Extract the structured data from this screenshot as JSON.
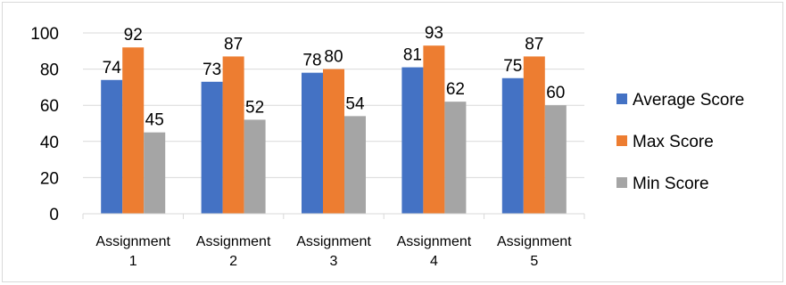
{
  "chart_data": {
    "type": "bar",
    "title": "",
    "xlabel": "",
    "ylabel": "",
    "categories": [
      [
        "Assignment",
        "1"
      ],
      [
        "Assignment",
        "2"
      ],
      [
        "Assignment",
        "3"
      ],
      [
        "Assignment",
        "4"
      ],
      [
        "Assignment",
        "5"
      ]
    ],
    "series": [
      {
        "name": "Average Score",
        "color": "#4472c4",
        "values": [
          74,
          73,
          78,
          81,
          75
        ]
      },
      {
        "name": "Max Score",
        "color": "#ed7d31",
        "values": [
          92,
          87,
          80,
          93,
          87
        ]
      },
      {
        "name": "Min Score",
        "color": "#a5a5a5",
        "values": [
          45,
          52,
          54,
          62,
          60
        ]
      }
    ],
    "ylim": [
      0,
      100
    ],
    "yticks": [
      0,
      20,
      40,
      60,
      80,
      100
    ],
    "grid": true,
    "legend_position": "right",
    "data_labels": true
  }
}
